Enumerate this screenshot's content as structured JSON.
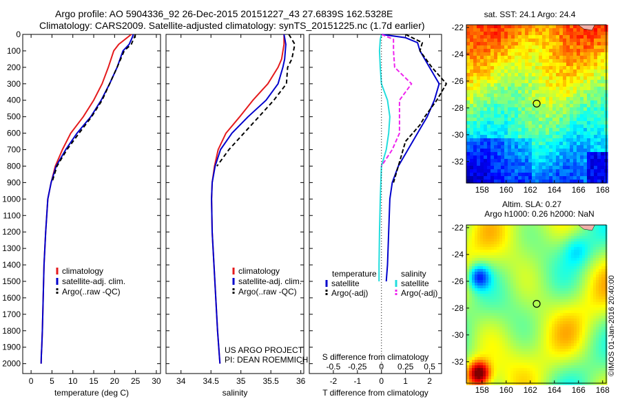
{
  "header": {
    "line1": "Argo profile: AO 5904336_92 26-Dec-2015 20151227_43 27.6839S 162.5328E",
    "line2": "Climatology: CARS2009. Satellite-adjusted climatology: synTS_20151225.nc (1.7d earlier)"
  },
  "colors": {
    "climatology": "#e41a1c",
    "satellite": "#0000cc",
    "argo": "#000000",
    "salinity_sat": "#22dddd",
    "salinity_argo": "#ee22ee"
  },
  "chart_data": [
    {
      "type": "line",
      "id": "temperature",
      "xlabel": "temperature (deg C)",
      "xlim": [
        -2,
        31
      ],
      "ylim": [
        0,
        2060
      ],
      "xticks": [
        0,
        5,
        10,
        15,
        20,
        25,
        30
      ],
      "yticks": [
        0,
        100,
        200,
        300,
        400,
        500,
        600,
        700,
        800,
        900,
        1000,
        1100,
        1200,
        1300,
        1400,
        1500,
        1600,
        1700,
        1800,
        1900,
        2000
      ],
      "legend": [
        "climatology",
        "satellite-adj. clim.",
        "Argo(..raw -QC)"
      ],
      "series": [
        {
          "name": "climatology",
          "color": "#e41a1c",
          "dash": "",
          "x": [
            24.0,
            23.0,
            21.0,
            19.8,
            18.5,
            17.0,
            15.0,
            12.5,
            9.5,
            7.5,
            5.8,
            4.8,
            4.0,
            3.5,
            3.1,
            2.9,
            2.7,
            2.55,
            2.45,
            2.4
          ],
          "y": [
            0,
            20,
            60,
            100,
            200,
            300,
            400,
            500,
            600,
            700,
            800,
            900,
            1000,
            1200,
            1400,
            1600,
            1800,
            1900,
            1950,
            2000
          ]
        },
        {
          "name": "satellite-adj. clim.",
          "color": "#0000cc",
          "dash": "",
          "x": [
            24.5,
            24.2,
            23.5,
            22.0,
            20.6,
            18.8,
            16.8,
            14.3,
            11.0,
            8.3,
            6.0,
            4.8,
            4.0,
            3.5,
            3.1,
            2.9,
            2.7,
            2.55,
            2.45,
            2.4
          ],
          "y": [
            0,
            20,
            60,
            100,
            200,
            300,
            400,
            500,
            600,
            700,
            800,
            900,
            1000,
            1200,
            1400,
            1600,
            1800,
            1900,
            1950,
            2000
          ]
        },
        {
          "name": "Argo(..raw -QC)",
          "color": "#000000",
          "dash": "6,4",
          "x": [
            25.0,
            24.7,
            24.0,
            22.3,
            20.6,
            18.8,
            17.0,
            14.5,
            11.5,
            8.6,
            6.2,
            5.0
          ],
          "y": [
            0,
            20,
            60,
            100,
            200,
            300,
            400,
            500,
            600,
            700,
            800,
            900
          ]
        }
      ]
    },
    {
      "type": "line",
      "id": "salinity",
      "xlabel": "salinity",
      "xlim": [
        33.75,
        36.05
      ],
      "ylim": [
        0,
        2060
      ],
      "xticks": [
        34,
        34.5,
        35,
        35.5,
        36
      ],
      "xticklabels": [
        "34",
        "34.5",
        "35",
        "35.5",
        "36"
      ],
      "legend": [
        "climatology",
        "satellite-adj. clim.",
        "Argo(..raw -QC)"
      ],
      "series": [
        {
          "name": "climatology",
          "color": "#e41a1c",
          "dash": "",
          "x": [
            35.72,
            35.72,
            35.68,
            35.62,
            35.45,
            35.2,
            34.98,
            34.75,
            34.62,
            34.56,
            34.52,
            34.51,
            34.52,
            34.55,
            34.58,
            34.61,
            34.64,
            34.65
          ],
          "y": [
            0,
            60,
            150,
            200,
            300,
            400,
            500,
            600,
            700,
            800,
            900,
            1000,
            1200,
            1400,
            1600,
            1800,
            1950,
            2000
          ]
        },
        {
          "name": "satellite-adj. clim.",
          "color": "#0000cc",
          "dash": "",
          "x": [
            35.72,
            35.75,
            35.73,
            35.7,
            35.62,
            35.42,
            35.12,
            34.85,
            34.66,
            34.57,
            34.52,
            34.51,
            34.52,
            34.55,
            34.58,
            34.61,
            34.64,
            34.65
          ],
          "y": [
            0,
            60,
            150,
            200,
            300,
            400,
            500,
            600,
            700,
            800,
            900,
            1000,
            1200,
            1400,
            1600,
            1800,
            1950,
            2000
          ]
        },
        {
          "name": "Argo(..raw -QC)",
          "color": "#000000",
          "dash": "6,4",
          "x": [
            35.8,
            35.9,
            35.85,
            35.78,
            35.76,
            35.55,
            35.3,
            35.05,
            34.8,
            34.6
          ],
          "y": [
            0,
            60,
            150,
            200,
            300,
            400,
            500,
            600,
            700,
            800
          ]
        }
      ]
    },
    {
      "type": "line",
      "id": "difference",
      "xlabel": "T difference from climatology",
      "xlabel2": "S difference from climatology",
      "xlim": [
        -3.0,
        2.5
      ],
      "ylim": [
        0,
        2060
      ],
      "xticks": [
        -2,
        -1,
        0,
        1,
        2
      ],
      "xticklabels": [
        "-2",
        "-1",
        "0",
        "1",
        "2"
      ],
      "xticks2": [
        -2,
        -1,
        0,
        1,
        2
      ],
      "xticklabels2": [
        "-0.5",
        "-0.25",
        "0",
        "0.25",
        "0.5"
      ],
      "legend_headers": [
        "temperature",
        "salinity"
      ],
      "legend": [
        "satellite",
        "Argo(-adj)",
        "satellite",
        "Argo(-adj)"
      ],
      "series": [
        {
          "name": "satellite",
          "color": "#0000cc",
          "dash": "",
          "x": [
            0.0,
            1.0,
            1.5,
            1.6,
            2.0,
            2.4,
            2.2,
            1.9,
            1.7,
            1.3,
            0.7,
            0.45,
            0.35,
            0.3,
            0.25,
            0.2
          ],
          "y": [
            0,
            20,
            50,
            100,
            200,
            300,
            400,
            500,
            550,
            650,
            800,
            900,
            1000,
            1200,
            1400,
            1500
          ]
        },
        {
          "name": "Argo(-adj)",
          "color": "#000000",
          "dash": "6,3",
          "x": [
            1.0,
            1.7,
            1.6,
            2.1,
            2.7,
            2.3,
            1.8,
            1.6,
            1.0,
            0.7,
            0.5
          ],
          "y": [
            0,
            50,
            100,
            200,
            300,
            400,
            500,
            550,
            650,
            800,
            900
          ]
        },
        {
          "name": "satellite",
          "color": "#22dddd",
          "dash": "",
          "x": [
            0.0,
            -0.05,
            -0.08,
            -0.05,
            0.0,
            0.25,
            0.35,
            0.3,
            0.2,
            0.0,
            -0.05,
            -0.08,
            -0.1,
            -0.1
          ],
          "y": [
            0,
            30,
            100,
            200,
            300,
            400,
            500,
            600,
            700,
            800,
            1000,
            1200,
            1400,
            1500
          ]
        },
        {
          "name": "Argo(-adj)",
          "color": "#ee22ee",
          "dash": "6,3",
          "x": [
            0.0,
            0.5,
            0.5,
            0.55,
            1.25,
            0.75,
            0.75,
            0.75,
            0.45,
            0.0
          ],
          "y": [
            0,
            30,
            100,
            200,
            300,
            400,
            500,
            600,
            700,
            800
          ]
        }
      ]
    },
    {
      "type": "heatmap",
      "id": "sst_map",
      "title": "sat. SST: 24.1  Argo: 24.4",
      "xticks": [
        158,
        160,
        162,
        164,
        166,
        168
      ],
      "yticks": [
        -22,
        -24,
        -26,
        -28,
        -30,
        -32
      ],
      "xlim": [
        156.7,
        168.3
      ],
      "ylim": [
        -33.6,
        -21.8
      ],
      "marker": [
        162.53,
        -27.68
      ]
    },
    {
      "type": "heatmap",
      "id": "sla_map",
      "title": "Altim. SLA: 0.27",
      "subtitle": "Argo h1000: 0.26 h2000: NaN",
      "xticks": [
        158,
        160,
        162,
        164,
        166,
        168
      ],
      "yticks": [
        -22,
        -24,
        -26,
        -28,
        -30,
        -32
      ],
      "xlim": [
        156.7,
        168.3
      ],
      "ylim": [
        -33.6,
        -21.8
      ],
      "marker": [
        162.53,
        -27.68
      ]
    }
  ],
  "annotations": {
    "project": "US ARGO PROJECT",
    "pi": "PI: DEAN ROEMMICH",
    "imos": "©IMOS 01-Jan-2016 20:40:00"
  }
}
